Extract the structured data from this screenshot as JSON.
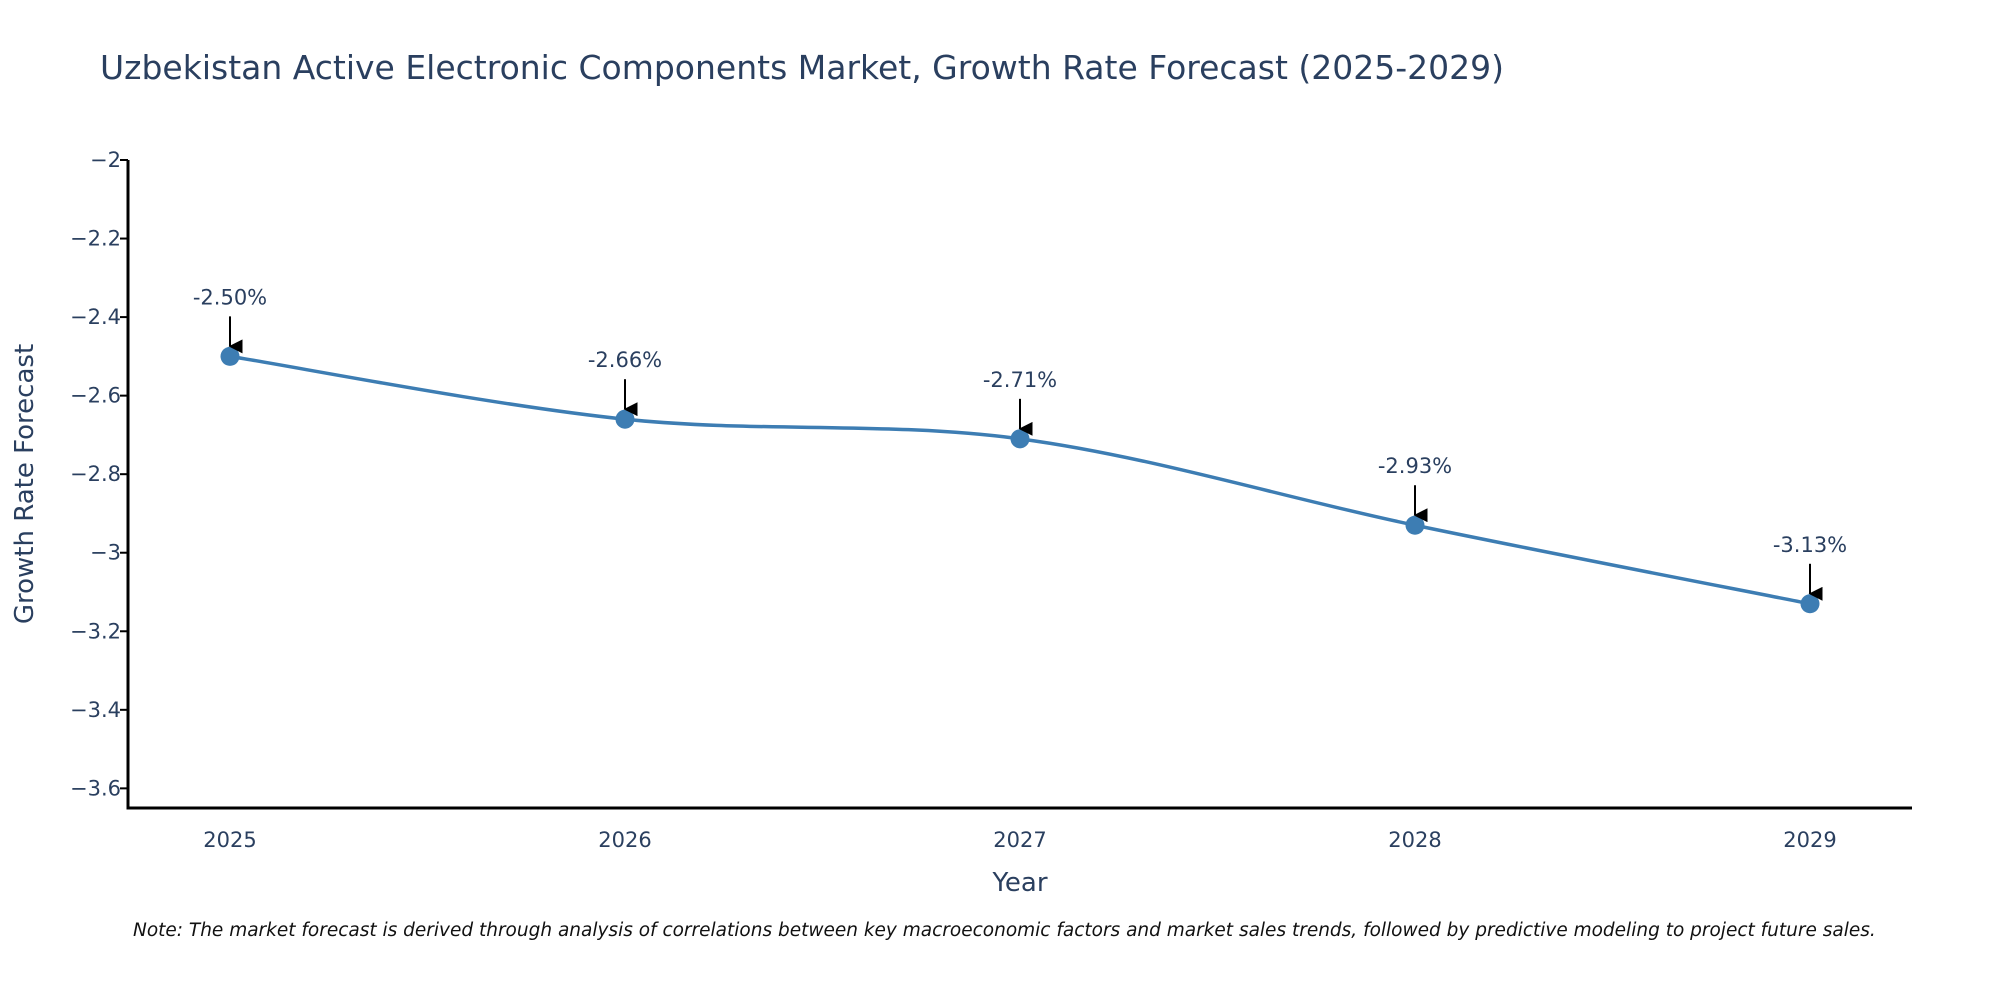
{
  "chart_data": {
    "type": "line",
    "title": "Uzbekistan Active Electronic Components Market, Growth Rate Forecast (2025-2029)",
    "xlabel": "Year",
    "ylabel": "Growth Rate Forecast",
    "categories": [
      "2025",
      "2026",
      "2027",
      "2028",
      "2029"
    ],
    "values": [
      -2.5,
      -2.66,
      -2.71,
      -2.93,
      -3.13
    ],
    "annotations": [
      "-2.50%",
      "-2.66%",
      "-2.71%",
      "-2.93%",
      "-3.13%"
    ],
    "ylim": [
      -3.65,
      -2.0
    ],
    "yticks": [
      -2,
      -2.2,
      -2.4,
      -2.6,
      -2.8,
      -3,
      -3.2,
      -3.4,
      -3.6
    ],
    "ytick_labels": [
      "−2",
      "−2.2",
      "−2.4",
      "−2.6",
      "−2.8",
      "−3",
      "−3.2",
      "−3.4",
      "−3.6"
    ],
    "grid": false,
    "line_color": "#3d7db3",
    "marker_color": "#3d7db3"
  },
  "note": "Note: The market forecast is derived through analysis of correlations between key macroeconomic factors and market sales trends, followed by predictive modeling to project future sales."
}
